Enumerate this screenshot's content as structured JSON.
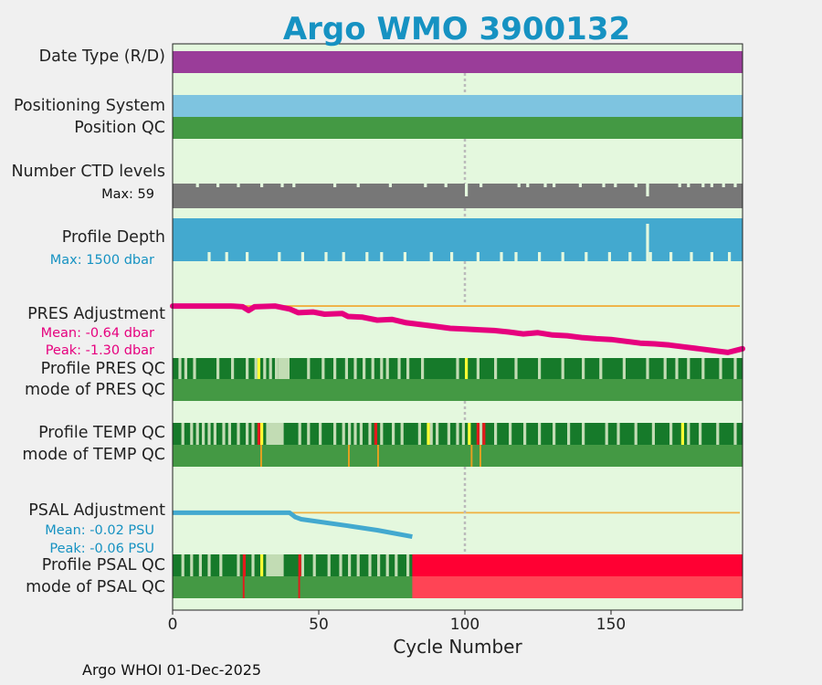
{
  "title": "Argo WMO 3900132",
  "footer": "Argo WHOI 01-Dec-2025",
  "colors": {
    "plot_bg": "#e4f8de",
    "date_type": "#9a3d99",
    "positioning": "#7ec4e0",
    "qc_good": "#449944",
    "qc_profile_good": "#167a2a",
    "qc_light": "#c2dcb4",
    "qc_yellow": "#ffff33",
    "qc_red": "#e41a1c",
    "qc_orange": "#e8a020",
    "psal_bad": "#ff0033",
    "psal_mode_bad": "#ff4455",
    "ctd": "#777777",
    "depth": "#43a9cf",
    "pres_adj": "#e6007e",
    "psal_adj": "#43a9cf",
    "ref_line": "#f0b040",
    "guide": "#bbbbbb"
  },
  "rows": {
    "date_type": "Date Type (R/D)",
    "positioning": "Positioning System",
    "position_qc": "Position QC",
    "ctd_levels": "Number CTD levels",
    "ctd_max": "Max: 59",
    "profile_depth": "Profile Depth",
    "depth_max": "Max: 1500 dbar",
    "pres_adjustment": "PRES Adjustment",
    "pres_mean": "Mean: -0.64 dbar",
    "pres_peak": "Peak: -1.30 dbar",
    "profile_pres_qc": "Profile PRES QC",
    "mode_pres_qc": "mode of PRES QC",
    "profile_temp_qc": "Profile TEMP QC",
    "mode_temp_qc": "mode of TEMP QC",
    "psal_adjustment": "PSAL Adjustment",
    "psal_mean": "Mean: -0.02 PSU",
    "psal_peak": "Peak: -0.06 PSU",
    "profile_psal_qc": "Profile PSAL QC",
    "mode_psal_qc": "mode of PSAL QC"
  },
  "chart_data": {
    "type": "table",
    "xlabel": "Cycle Number",
    "xlim": [
      0,
      195
    ],
    "xticks": [
      "0",
      "50",
      "100",
      "150"
    ],
    "xtick_values": [
      0,
      50,
      100,
      150
    ],
    "reference_cycle": 100,
    "n_cycles": 195,
    "ctd_max": 59,
    "depth_max_dbar": 1500,
    "ctd_dips": [
      8,
      15,
      22,
      30,
      37,
      41,
      55,
      63,
      74,
      86,
      93,
      105,
      118,
      121,
      127,
      130,
      139,
      147,
      151,
      158,
      162,
      173,
      176,
      181,
      184,
      188,
      192
    ],
    "ctd_big_dips": [
      100,
      162
    ],
    "depth_dips": [
      12,
      18,
      25,
      36,
      44,
      52,
      58,
      66,
      71,
      79,
      88,
      95,
      104,
      112,
      117,
      125,
      133,
      141,
      149,
      156,
      163,
      170,
      177,
      184,
      190
    ],
    "depth_big_dips": [
      162
    ],
    "pres_adjustment": {
      "x": [
        0,
        20,
        24,
        26,
        28,
        35,
        40,
        43,
        48,
        52,
        58,
        60,
        65,
        70,
        75,
        80,
        85,
        90,
        95,
        100,
        105,
        110,
        115,
        120,
        125,
        130,
        135,
        140,
        145,
        150,
        155,
        160,
        165,
        170,
        175,
        180,
        185,
        190,
        195
      ],
      "y": [
        0.0,
        0.0,
        -0.02,
        -0.12,
        -0.02,
        0.0,
        -0.08,
        -0.18,
        -0.16,
        -0.22,
        -0.2,
        -0.28,
        -0.3,
        -0.38,
        -0.36,
        -0.45,
        -0.5,
        -0.55,
        -0.6,
        -0.62,
        -0.64,
        -0.66,
        -0.7,
        -0.75,
        -0.72,
        -0.78,
        -0.8,
        -0.85,
        -0.88,
        -0.9,
        -0.95,
        -1.0,
        -1.02,
        -1.05,
        -1.1,
        -1.15,
        -1.2,
        -1.25,
        -1.15
      ],
      "ylim": [
        -1.4,
        0.1
      ]
    },
    "psal_adjustment": {
      "x": [
        0,
        23,
        26,
        40,
        41,
        42,
        44,
        60,
        70,
        82
      ],
      "y": [
        0.0,
        0.0,
        0.0,
        0.0,
        -0.005,
        -0.01,
        -0.015,
        -0.03,
        -0.04,
        -0.055
      ],
      "ylim": [
        -0.06,
        0.005
      ],
      "end_cycle": 82
    },
    "profile_pres_qc": {
      "light": [
        2,
        4,
        7,
        15,
        20,
        25,
        28,
        31,
        33,
        35,
        37,
        46,
        51,
        55,
        59,
        62,
        65,
        68,
        71,
        73,
        77,
        80,
        85,
        97,
        104,
        110,
        117,
        125,
        133,
        140,
        146,
        154,
        162,
        168,
        172,
        176,
        181,
        187,
        192
      ],
      "light_wide": [
        [
          36,
          40
        ]
      ],
      "yellow": [
        29,
        100
      ]
    },
    "profile_temp_qc": {
      "light": [
        3,
        6,
        8,
        10,
        12,
        14,
        17,
        19,
        22,
        25,
        27,
        33,
        43,
        46,
        50,
        55,
        58,
        60,
        62,
        64,
        67,
        71,
        75,
        78,
        84,
        88,
        90,
        94,
        97,
        99,
        105,
        110,
        115,
        120,
        125,
        130,
        135,
        140,
        148,
        152,
        158,
        164,
        170,
        176,
        180,
        186,
        192
      ],
      "light_wide": [
        [
          32,
          38
        ]
      ],
      "yellow": [
        30,
        87,
        101,
        174
      ],
      "red": [
        29,
        69,
        104,
        106
      ]
    },
    "mode_temp_qc": {
      "orange": [
        30,
        60,
        70,
        102,
        105
      ]
    },
    "profile_psal_qc": {
      "light": [
        3,
        6,
        9,
        12,
        16,
        22,
        27,
        32,
        36,
        44,
        48,
        53,
        57,
        60,
        63,
        67,
        70,
        73,
        76,
        80
      ],
      "light_wide": [
        [
          32,
          38
        ]
      ],
      "yellow": [
        30
      ],
      "red": [
        24,
        43
      ],
      "bad_start": 82
    },
    "mode_psal_qc": {
      "red": [
        24,
        43
      ],
      "bad_start": 82
    }
  }
}
